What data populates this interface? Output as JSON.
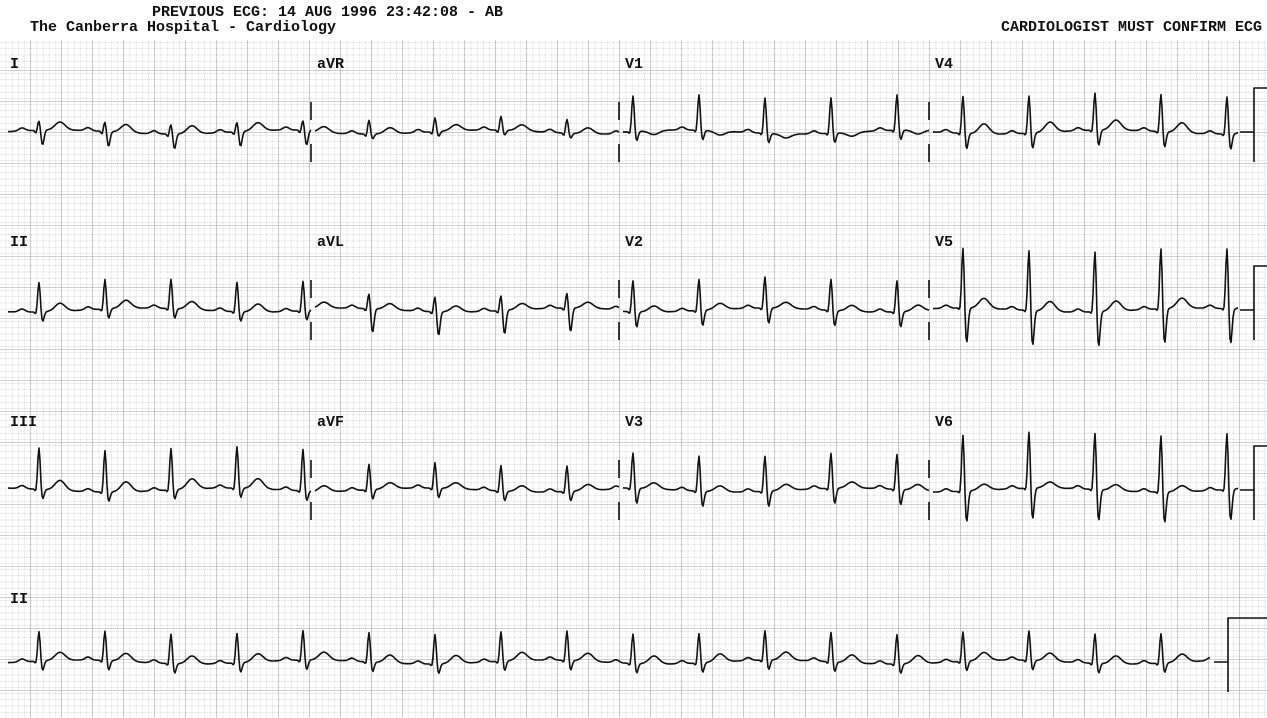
{
  "header": {
    "title": "PREVIOUS ECG: 14 AUG 1996 23:42:08 - AB",
    "hospital": "The Canberra Hospital - Cardiology",
    "notice": "CARDIOLOGIST MUST CONFIRM ECG"
  },
  "leads": [
    "I",
    "aVR",
    "V1",
    "V4",
    "II",
    "aVL",
    "V2",
    "V5",
    "III",
    "aVF",
    "V3",
    "V6",
    "II"
  ]
}
